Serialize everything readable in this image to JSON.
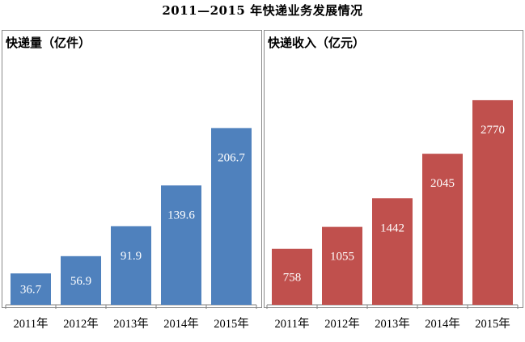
{
  "title": "2011—2015 年快递业务发展情况",
  "chart_data": [
    {
      "type": "bar",
      "title": "快递量（亿件）",
      "categories": [
        "2011年",
        "2012年",
        "2013年",
        "2014年",
        "2015年"
      ],
      "values": [
        36.7,
        56.9,
        91.9,
        139.6,
        206.7
      ],
      "value_labels": [
        "36.7",
        "56.9",
        "91.9",
        "139.6",
        "206.7"
      ],
      "color": "#4f81bd",
      "ylim": [
        0,
        260
      ],
      "grid": false,
      "legend": "none"
    },
    {
      "type": "bar",
      "title": "快递收入（亿元）",
      "categories": [
        "2011年",
        "2012年",
        "2013年",
        "2014年",
        "2015年"
      ],
      "values": [
        758,
        1055,
        1442,
        2045,
        2770
      ],
      "value_labels": [
        "758",
        "1055",
        "1442",
        "2045",
        "2770"
      ],
      "color": "#c0504d",
      "ylim": [
        0,
        3010
      ],
      "grid": false,
      "legend": "none"
    }
  ]
}
